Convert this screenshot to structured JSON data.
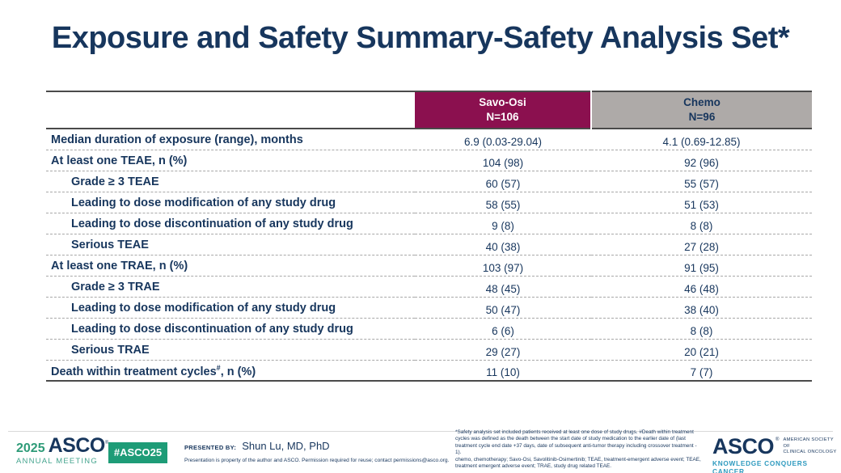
{
  "slide": {
    "title": "Exposure and Safety Summary-Safety Analysis Set*"
  },
  "table": {
    "columns": [
      {
        "label": "Savo-Osi",
        "n": "N=106",
        "bg": "#8B104F",
        "text_color": "#FFFFFF"
      },
      {
        "label": "Chemo",
        "n": "N=96",
        "bg": "#AEAAA8",
        "text_color": "#17365D"
      }
    ],
    "rows": [
      {
        "label": "Median duration of exposure (range), months",
        "indent": 0,
        "savo": "6.9 (0.03-29.04)",
        "chemo": "4.1 (0.69-12.85)"
      },
      {
        "label": "At least one TEAE, n (%)",
        "indent": 0,
        "savo": "104 (98)",
        "chemo": "92 (96)"
      },
      {
        "label": "Grade ≥ 3 TEAE",
        "indent": 1,
        "savo": "60 (57)",
        "chemo": "55 (57)"
      },
      {
        "label": "Leading to dose modification of any study drug",
        "indent": 1,
        "savo": "58 (55)",
        "chemo": "51 (53)"
      },
      {
        "label": "Leading to dose discontinuation of any study drug",
        "indent": 1,
        "savo": "9 (8)",
        "chemo": "8 (8)"
      },
      {
        "label": "Serious TEAE",
        "indent": 1,
        "savo": "40 (38)",
        "chemo": "27 (28)"
      },
      {
        "label": "At least one TRAE, n (%)",
        "indent": 0,
        "savo": "103 (97)",
        "chemo": "91 (95)"
      },
      {
        "label": "Grade ≥ 3 TRAE",
        "indent": 1,
        "savo": "48 (45)",
        "chemo": "46 (48)"
      },
      {
        "label": "Leading to dose modification of any study drug",
        "indent": 1,
        "savo": "50 (47)",
        "chemo": "38 (40)"
      },
      {
        "label": "Leading to dose discontinuation of any study drug",
        "indent": 1,
        "savo": "6 (6)",
        "chemo": "8 (8)"
      },
      {
        "label": "Serious TRAE",
        "indent": 1,
        "savo": "29 (27)",
        "chemo": "20 (21)"
      },
      {
        "label": "Death within treatment cycles",
        "sup": "#",
        "label_suffix": ", n (%)",
        "indent": 0,
        "savo": "11 (10)",
        "chemo": "7 (7)"
      }
    ]
  },
  "footnote": {
    "p1": "*Safety analysis set included patients received at least one dose of study drugs. #Death within treatment cycles was defined as the death between the start date of study medication to the earlier date of (last treatment cycle end date +37 days, date of subsequent anti-tumor therapy including crossover treatment - 1).",
    "p2": "chemo, chemotherapy; Savo-Osi, Savolitinib-Osimertinib; TEAE, treatment-emergent adverse event; TEAE, treatment emergent adverse event; TRAE, study drug related TEAE."
  },
  "footer": {
    "meeting": {
      "year": "2025",
      "org": "ASCO",
      "reg": "®",
      "sub": "ANNUAL MEETING"
    },
    "hashtag": "#ASCO25",
    "presented_by_label": "PRESENTED BY:",
    "presenter": "Shun Lu, MD, PhD",
    "permission": "Presentation is property of the author and ASCO. Permission required for reuse; contact permissions@asco.org.",
    "asco_logo": {
      "org": "ASCO",
      "reg": "®",
      "society_line1": "AMERICAN SOCIETY OF",
      "society_line2": "CLINICAL ONCOLOGY",
      "tagline": "KNOWLEDGE CONQUERS CANCER"
    }
  },
  "colors": {
    "navy": "#17365D",
    "maroon": "#8B104F",
    "header_gray": "#AEAAA8",
    "green": "#1E9C77",
    "tagline_blue": "#2E9ABF"
  }
}
